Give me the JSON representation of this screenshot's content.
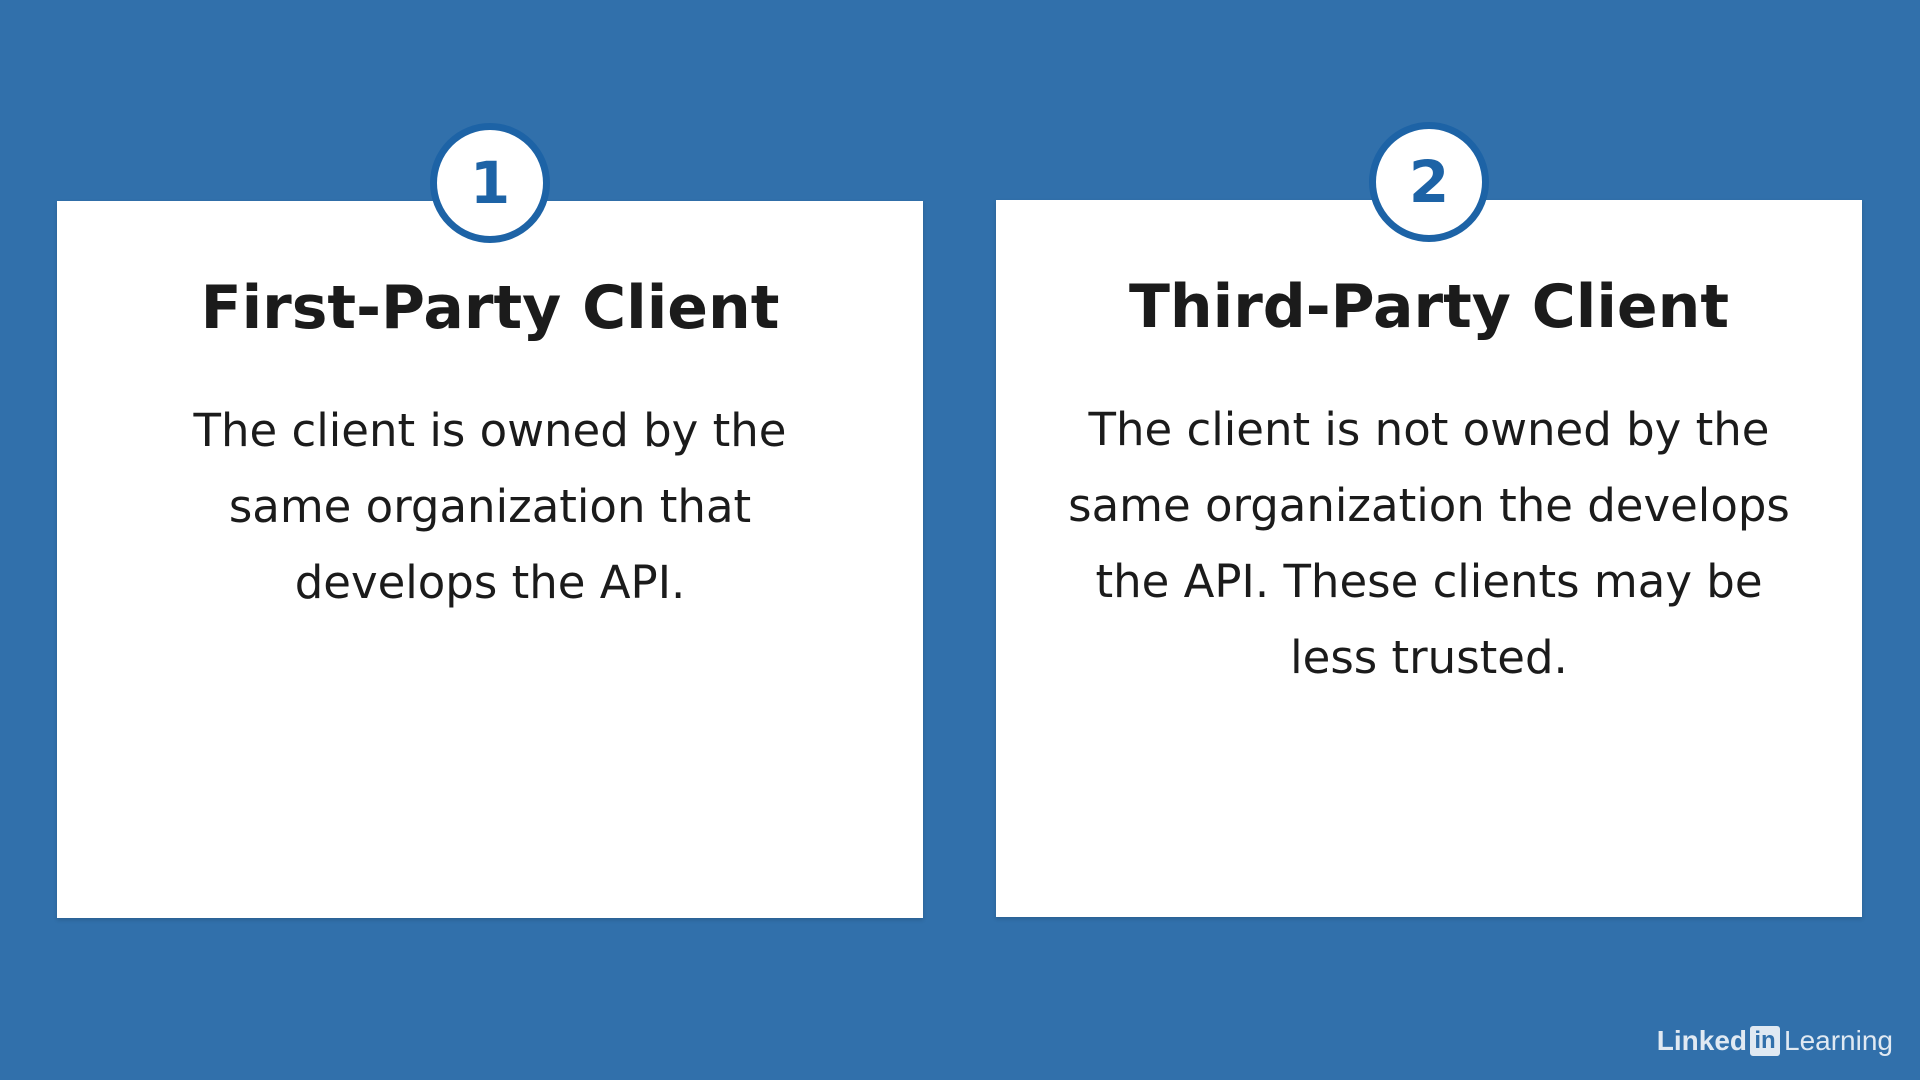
{
  "slide": {
    "background_color": "#3170ab",
    "accent_color": "#1d63a6",
    "cards": [
      {
        "number": "1",
        "title": "First-Party Client",
        "description": "The client is owned by the same organization that develops the API."
      },
      {
        "number": "2",
        "title": "Third-Party Client",
        "description": "The client is not owned by the same organization the develops the API.  These clients may be less trusted."
      }
    ]
  },
  "branding": {
    "linked": "Linked",
    "in": "in",
    "learning": "Learning"
  }
}
